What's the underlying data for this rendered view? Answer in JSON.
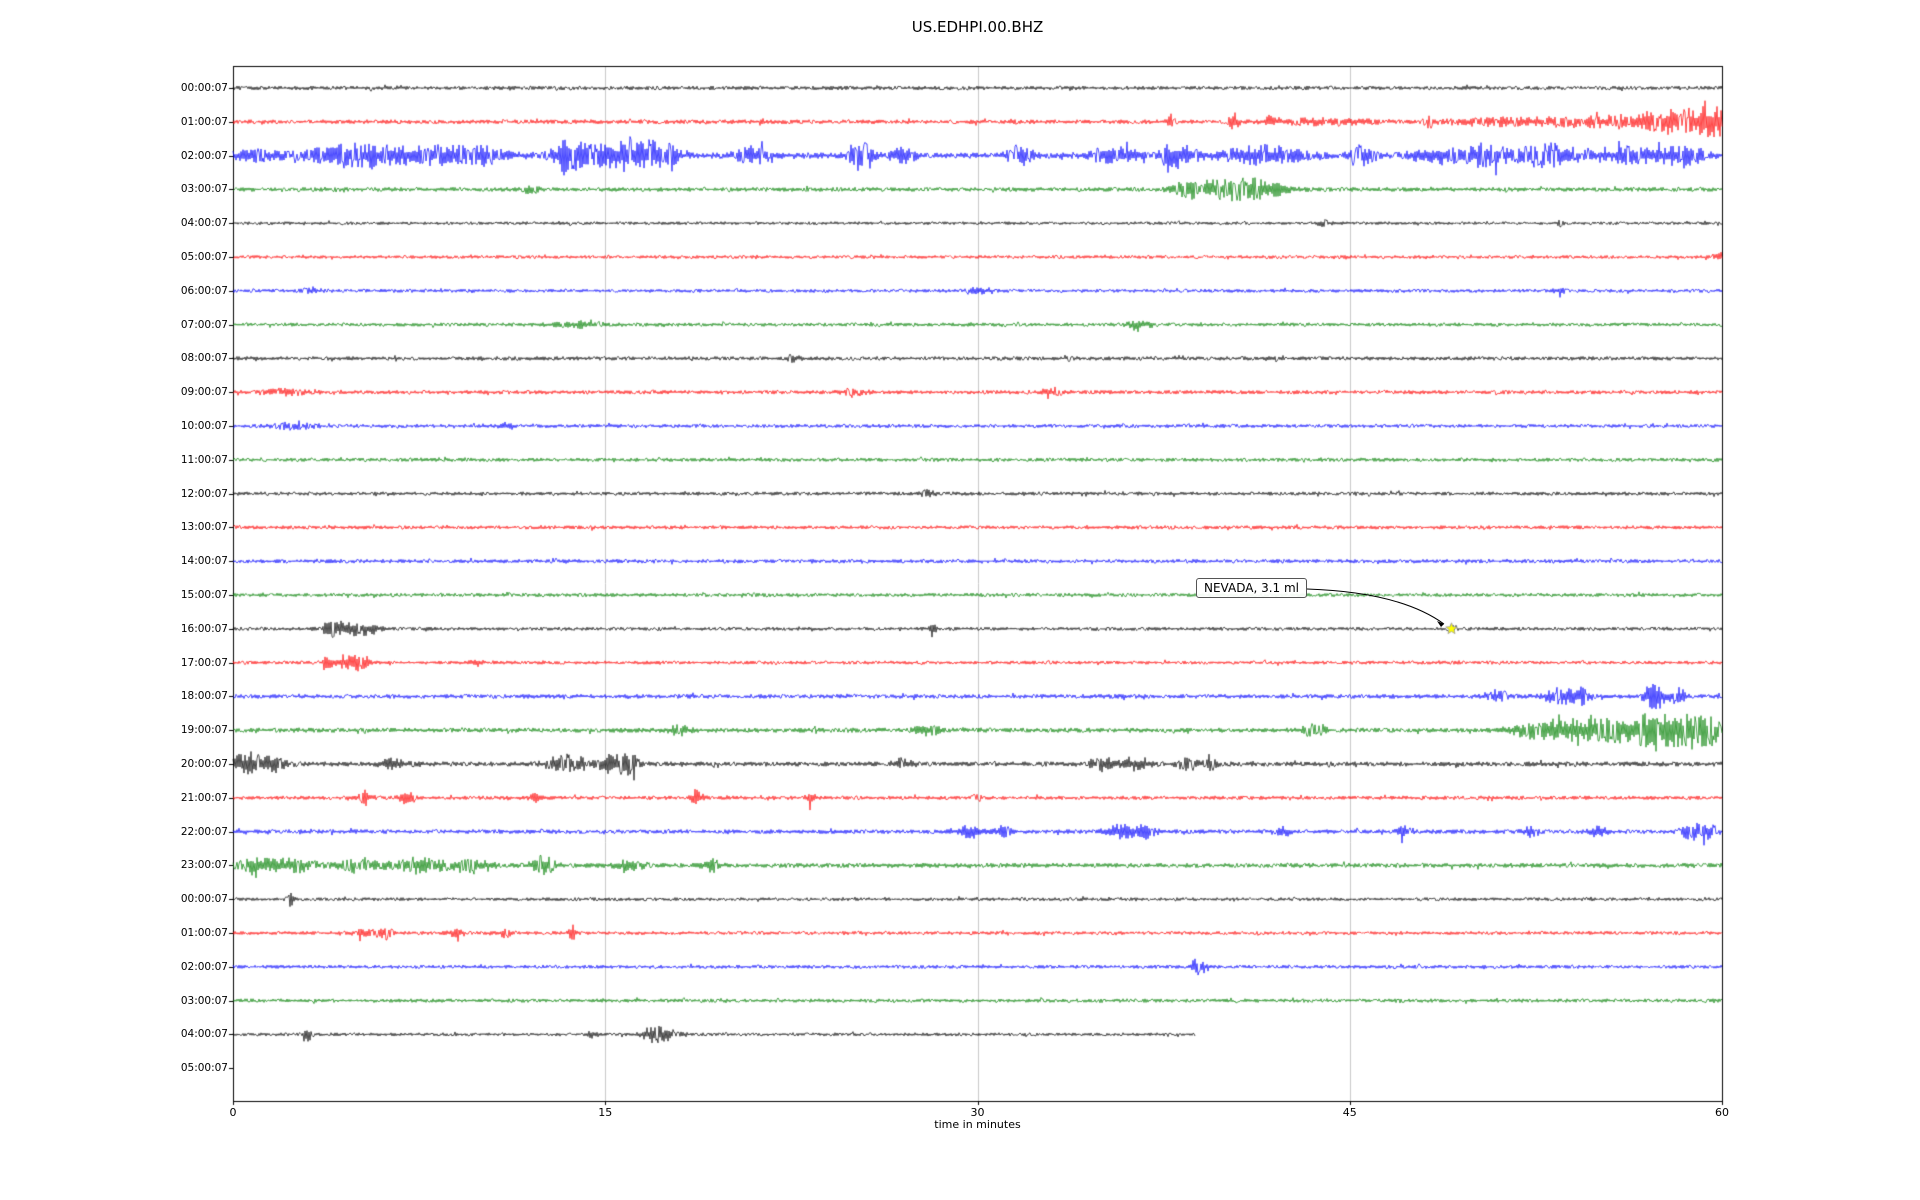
{
  "title": "US.EDHPI.00.BHZ",
  "xlabel": "time in minutes",
  "annotation": {
    "text": "NEVADA, 3.1 ml"
  },
  "colors": {
    "black": "#000000",
    "red": "#ff0000",
    "blue": "#0000ff",
    "green": "#008000",
    "grid": "#c8c8c8",
    "marker": "#ffff00"
  },
  "chart_data": {
    "type": "line",
    "title": "US.EDHPI.00.BHZ",
    "xlabel": "time in minutes",
    "xlim": [
      0,
      60
    ],
    "x_ticks": [
      {
        "value": 0,
        "label": "0"
      },
      {
        "value": 15,
        "label": "15"
      },
      {
        "value": 30,
        "label": "30"
      },
      {
        "value": 45,
        "label": "45"
      },
      {
        "value": 60,
        "label": "60"
      }
    ],
    "grid": "vertical",
    "event_marker": {
      "row": 16,
      "minute": 49.1,
      "color": "#ffff00",
      "label": "NEVADA, 3.1 ml"
    },
    "rows": [
      {
        "label": "00:00:07",
        "color": "#000000",
        "base": 2.0,
        "end": 60,
        "events": []
      },
      {
        "label": "01:00:07",
        "color": "#ff0000",
        "base": 2.2,
        "end": 60,
        "events": [
          {
            "t": 31.5,
            "w": 0.15,
            "a": 2.0
          },
          {
            "t": 37.8,
            "w": 0.15,
            "a": 3.0
          },
          {
            "t": 40.3,
            "w": 0.2,
            "a": 4.0
          },
          {
            "t": 41.8,
            "w": 0.15,
            "a": 2.5
          },
          {
            "t": 44.0,
            "w": 2.0,
            "a": 1.2
          },
          {
            "t": 48.2,
            "w": 0.2,
            "a": 2.5
          },
          {
            "t": 50.5,
            "w": 1.5,
            "a": 1.5
          },
          {
            "t": 54.0,
            "w": 2.0,
            "a": 2.0
          },
          {
            "t": 57.0,
            "w": 1.5,
            "a": 3.0
          },
          {
            "t": 59.0,
            "w": 1.5,
            "a": 4.5
          },
          {
            "t": 60.0,
            "w": 0.8,
            "a": 4.0
          }
        ]
      },
      {
        "label": "02:00:07",
        "color": "#0000ff",
        "base": 3.0,
        "end": 60,
        "events": [
          {
            "t": 1.0,
            "w": 1.0,
            "a": 1.5
          },
          {
            "t": 4.5,
            "w": 1.5,
            "a": 3.0
          },
          {
            "t": 7.5,
            "w": 2.0,
            "a": 3.0
          },
          {
            "t": 10.0,
            "w": 1.0,
            "a": 2.5
          },
          {
            "t": 13.5,
            "w": 0.5,
            "a": 4.0
          },
          {
            "t": 14.5,
            "w": 1.5,
            "a": 3.0
          },
          {
            "t": 16.3,
            "w": 0.8,
            "a": 6.0
          },
          {
            "t": 17.5,
            "w": 0.5,
            "a": 3.0
          },
          {
            "t": 21.0,
            "w": 0.7,
            "a": 2.5
          },
          {
            "t": 25.3,
            "w": 0.4,
            "a": 5.0
          },
          {
            "t": 27.0,
            "w": 0.5,
            "a": 2.5
          },
          {
            "t": 31.7,
            "w": 0.5,
            "a": 3.5
          },
          {
            "t": 35.5,
            "w": 1.0,
            "a": 2.5
          },
          {
            "t": 38.0,
            "w": 0.8,
            "a": 3.5
          },
          {
            "t": 41.5,
            "w": 1.5,
            "a": 3.0
          },
          {
            "t": 45.5,
            "w": 0.5,
            "a": 3.0
          },
          {
            "t": 48.5,
            "w": 1.0,
            "a": 2.5
          },
          {
            "t": 50.5,
            "w": 0.8,
            "a": 3.5
          },
          {
            "t": 53.0,
            "w": 1.2,
            "a": 4.0
          },
          {
            "t": 56.5,
            "w": 1.0,
            "a": 3.0
          },
          {
            "t": 58.5,
            "w": 0.8,
            "a": 3.5
          }
        ]
      },
      {
        "label": "03:00:07",
        "color": "#008000",
        "base": 2.2,
        "end": 60,
        "events": [
          {
            "t": 12.0,
            "w": 0.3,
            "a": 1.5
          },
          {
            "t": 38.5,
            "w": 0.5,
            "a": 2.5
          },
          {
            "t": 40.0,
            "w": 1.5,
            "a": 4.0
          },
          {
            "t": 41.5,
            "w": 1.0,
            "a": 2.5
          }
        ]
      },
      {
        "label": "04:00:07",
        "color": "#000000",
        "base": 1.6,
        "end": 60,
        "events": [
          {
            "t": 44.0,
            "w": 0.3,
            "a": 1.5
          },
          {
            "t": 53.5,
            "w": 0.1,
            "a": 4.0
          }
        ]
      },
      {
        "label": "05:00:07",
        "color": "#ff0000",
        "base": 1.7,
        "end": 60,
        "events": [
          {
            "t": 60.0,
            "w": 0.3,
            "a": 2.0
          }
        ]
      },
      {
        "label": "06:00:07",
        "color": "#0000ff",
        "base": 1.8,
        "end": 60,
        "events": [
          {
            "t": 3.0,
            "w": 0.5,
            "a": 1.3
          },
          {
            "t": 30.0,
            "w": 0.4,
            "a": 1.3
          },
          {
            "t": 53.5,
            "w": 0.3,
            "a": 1.5
          }
        ]
      },
      {
        "label": "07:00:07",
        "color": "#008000",
        "base": 1.9,
        "end": 60,
        "events": [
          {
            "t": 14.0,
            "w": 1.0,
            "a": 1.3
          },
          {
            "t": 36.5,
            "w": 0.5,
            "a": 1.4
          }
        ]
      },
      {
        "label": "08:00:07",
        "color": "#000000",
        "base": 2.0,
        "end": 60,
        "events": [
          {
            "t": 22.5,
            "w": 0.3,
            "a": 1.5
          },
          {
            "t": 42.0,
            "w": 0.3,
            "a": 1.5
          }
        ]
      },
      {
        "label": "09:00:07",
        "color": "#ff0000",
        "base": 2.0,
        "end": 60,
        "events": [
          {
            "t": 2.0,
            "w": 1.0,
            "a": 1.3
          },
          {
            "t": 25.0,
            "w": 0.5,
            "a": 1.4
          },
          {
            "t": 33.0,
            "w": 0.5,
            "a": 1.3
          }
        ]
      },
      {
        "label": "10:00:07",
        "color": "#0000ff",
        "base": 1.9,
        "end": 60,
        "events": [
          {
            "t": 2.5,
            "w": 0.8,
            "a": 1.5
          },
          {
            "t": 11.0,
            "w": 0.3,
            "a": 1.3
          }
        ]
      },
      {
        "label": "11:00:07",
        "color": "#008000",
        "base": 1.9,
        "end": 60,
        "events": []
      },
      {
        "label": "12:00:07",
        "color": "#000000",
        "base": 1.9,
        "end": 60,
        "events": [
          {
            "t": 28.0,
            "w": 0.3,
            "a": 1.4
          }
        ]
      },
      {
        "label": "13:00:07",
        "color": "#ff0000",
        "base": 1.9,
        "end": 60,
        "events": []
      },
      {
        "label": "14:00:07",
        "color": "#0000ff",
        "base": 2.0,
        "end": 60,
        "events": []
      },
      {
        "label": "15:00:07",
        "color": "#008000",
        "base": 1.9,
        "end": 60,
        "events": []
      },
      {
        "label": "16:00:07",
        "color": "#000000",
        "base": 1.8,
        "end": 60,
        "events": [
          {
            "t": 3.9,
            "w": 0.3,
            "a": 3.0
          },
          {
            "t": 4.6,
            "w": 0.6,
            "a": 4.0
          },
          {
            "t": 5.5,
            "w": 0.4,
            "a": 2.5
          },
          {
            "t": 28.2,
            "w": 0.12,
            "a": 4.0
          },
          {
            "t": 49.1,
            "w": 0.15,
            "a": 2.0
          }
        ]
      },
      {
        "label": "17:00:07",
        "color": "#ff0000",
        "base": 1.8,
        "end": 60,
        "events": [
          {
            "t": 3.9,
            "w": 0.25,
            "a": 4.0
          },
          {
            "t": 4.7,
            "w": 0.4,
            "a": 5.0
          },
          {
            "t": 5.3,
            "w": 0.3,
            "a": 3.0
          },
          {
            "t": 9.8,
            "w": 0.2,
            "a": 2.5
          }
        ]
      },
      {
        "label": "18:00:07",
        "color": "#0000ff",
        "base": 2.2,
        "end": 60,
        "events": [
          {
            "t": 51.0,
            "w": 0.5,
            "a": 2.0
          },
          {
            "t": 53.5,
            "w": 0.6,
            "a": 4.0
          },
          {
            "t": 54.3,
            "w": 0.4,
            "a": 3.0
          },
          {
            "t": 57.3,
            "w": 0.4,
            "a": 6.0
          },
          {
            "t": 58.2,
            "w": 0.3,
            "a": 4.0
          }
        ]
      },
      {
        "label": "19:00:07",
        "color": "#008000",
        "base": 2.4,
        "end": 60,
        "events": [
          {
            "t": 18.0,
            "w": 0.4,
            "a": 2.0
          },
          {
            "t": 28.0,
            "w": 0.5,
            "a": 2.0
          },
          {
            "t": 43.5,
            "w": 0.5,
            "a": 2.0
          },
          {
            "t": 52.5,
            "w": 1.0,
            "a": 3.0
          },
          {
            "t": 54.0,
            "w": 1.0,
            "a": 4.0
          },
          {
            "t": 55.5,
            "w": 0.8,
            "a": 4.0
          },
          {
            "t": 57.0,
            "w": 1.0,
            "a": 6.0
          },
          {
            "t": 58.3,
            "w": 0.8,
            "a": 8.0
          },
          {
            "t": 59.3,
            "w": 0.7,
            "a": 6.0
          }
        ]
      },
      {
        "label": "20:00:07",
        "color": "#000000",
        "base": 2.4,
        "end": 60,
        "events": [
          {
            "t": 0.5,
            "w": 0.8,
            "a": 4.0
          },
          {
            "t": 1.5,
            "w": 0.6,
            "a": 3.0
          },
          {
            "t": 6.5,
            "w": 0.5,
            "a": 2.0
          },
          {
            "t": 13.5,
            "w": 0.8,
            "a": 3.5
          },
          {
            "t": 15.3,
            "w": 0.6,
            "a": 4.0
          },
          {
            "t": 16.0,
            "w": 0.4,
            "a": 3.0
          },
          {
            "t": 27.0,
            "w": 0.4,
            "a": 2.0
          },
          {
            "t": 35.0,
            "w": 0.6,
            "a": 2.5
          },
          {
            "t": 36.5,
            "w": 0.5,
            "a": 2.5
          },
          {
            "t": 38.5,
            "w": 0.4,
            "a": 3.0
          },
          {
            "t": 39.4,
            "w": 0.2,
            "a": 3.5
          }
        ]
      },
      {
        "label": "21:00:07",
        "color": "#ff0000",
        "base": 2.0,
        "end": 60,
        "events": [
          {
            "t": 5.3,
            "w": 0.2,
            "a": 4.0
          },
          {
            "t": 7.0,
            "w": 0.3,
            "a": 3.5
          },
          {
            "t": 12.2,
            "w": 0.2,
            "a": 3.0
          },
          {
            "t": 18.7,
            "w": 0.25,
            "a": 4.0
          },
          {
            "t": 23.3,
            "w": 0.2,
            "a": 3.0
          },
          {
            "t": 30.0,
            "w": 0.2,
            "a": 2.0
          }
        ]
      },
      {
        "label": "22:00:07",
        "color": "#0000ff",
        "base": 2.2,
        "end": 60,
        "events": [
          {
            "t": 29.7,
            "w": 0.4,
            "a": 3.0
          },
          {
            "t": 31.0,
            "w": 0.3,
            "a": 2.5
          },
          {
            "t": 35.8,
            "w": 0.6,
            "a": 3.0
          },
          {
            "t": 36.8,
            "w": 0.4,
            "a": 2.5
          },
          {
            "t": 42.3,
            "w": 0.3,
            "a": 2.5
          },
          {
            "t": 47.2,
            "w": 0.3,
            "a": 2.5
          },
          {
            "t": 52.3,
            "w": 0.3,
            "a": 2.0
          },
          {
            "t": 55.0,
            "w": 0.3,
            "a": 2.5
          },
          {
            "t": 58.8,
            "w": 0.4,
            "a": 4.0
          },
          {
            "t": 59.5,
            "w": 0.3,
            "a": 3.0
          }
        ]
      },
      {
        "label": "23:00:07",
        "color": "#008000",
        "base": 2.4,
        "end": 60,
        "events": [
          {
            "t": 1.0,
            "w": 0.8,
            "a": 2.5
          },
          {
            "t": 2.5,
            "w": 0.8,
            "a": 2.5
          },
          {
            "t": 5.0,
            "w": 1.0,
            "a": 2.5
          },
          {
            "t": 7.5,
            "w": 1.0,
            "a": 3.0
          },
          {
            "t": 9.5,
            "w": 0.8,
            "a": 2.5
          },
          {
            "t": 12.5,
            "w": 0.5,
            "a": 3.5
          },
          {
            "t": 16.0,
            "w": 0.5,
            "a": 2.0
          },
          {
            "t": 19.3,
            "w": 0.3,
            "a": 3.5
          }
        ]
      },
      {
        "label": "00:00:07",
        "color": "#000000",
        "base": 1.7,
        "end": 60,
        "events": [
          {
            "t": 2.3,
            "w": 0.15,
            "a": 4.0
          }
        ]
      },
      {
        "label": "01:00:07",
        "color": "#ff0000",
        "base": 1.8,
        "end": 60,
        "events": [
          {
            "t": 5.5,
            "w": 0.5,
            "a": 3.0
          },
          {
            "t": 6.2,
            "w": 0.3,
            "a": 2.5
          },
          {
            "t": 9.0,
            "w": 0.3,
            "a": 2.5
          },
          {
            "t": 11.0,
            "w": 0.3,
            "a": 2.0
          },
          {
            "t": 13.7,
            "w": 0.15,
            "a": 4.0
          }
        ]
      },
      {
        "label": "02:00:07",
        "color": "#0000ff",
        "base": 1.8,
        "end": 60,
        "events": [
          {
            "t": 38.9,
            "w": 0.25,
            "a": 6.0
          }
        ]
      },
      {
        "label": "03:00:07",
        "color": "#008000",
        "base": 1.9,
        "end": 60,
        "events": []
      },
      {
        "label": "04:00:07",
        "color": "#000000",
        "base": 1.7,
        "end": 38.8,
        "events": [
          {
            "t": 3.0,
            "w": 0.2,
            "a": 3.5
          },
          {
            "t": 14.5,
            "w": 0.2,
            "a": 2.0
          },
          {
            "t": 16.9,
            "w": 0.4,
            "a": 4.0
          },
          {
            "t": 17.6,
            "w": 0.5,
            "a": 3.0
          }
        ]
      },
      {
        "label": "05:00:07",
        "color": "#ff0000",
        "base": 0,
        "end": 0,
        "events": []
      }
    ]
  }
}
